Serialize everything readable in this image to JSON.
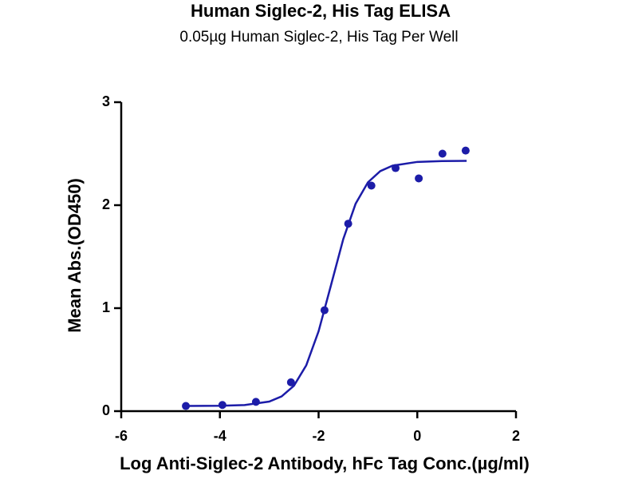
{
  "chart_data": {
    "type": "scatter",
    "title": "Human Siglec-2, His Tag ELISA",
    "subtitle": "0.05µg  Human Siglec-2, His Tag Per Well",
    "x_label": "Log Anti-Siglec-2 Antibody, hFc Tag Conc.(µg/ml)",
    "y_label": "Mean Abs.(OD450)",
    "xlim": [
      -6,
      2
    ],
    "ylim": [
      0,
      3
    ],
    "xticks": [
      -6,
      -4,
      -2,
      0,
      2
    ],
    "yticks": [
      0,
      1,
      2,
      3
    ],
    "series": [
      {
        "type": "scatter",
        "color": "#1c1ca8",
        "x": [
          -4.69,
          -3.95,
          -3.27,
          -2.56,
          -1.88,
          -1.4,
          -0.93,
          -0.44,
          0.03,
          0.51,
          0.98
        ],
        "values": [
          0.05,
          0.06,
          0.09,
          0.28,
          0.98,
          1.82,
          2.19,
          2.36,
          2.26,
          2.5,
          2.53
        ]
      },
      {
        "type": "line",
        "color": "#1c1ca8",
        "x": [
          -4.7,
          -4.0,
          -3.5,
          -3.0,
          -2.75,
          -2.5,
          -2.25,
          -2.0,
          -1.75,
          -1.5,
          -1.25,
          -1.0,
          -0.75,
          -0.5,
          0,
          0.5,
          1.0
        ],
        "values": [
          0.05,
          0.052,
          0.059,
          0.093,
          0.143,
          0.247,
          0.445,
          0.776,
          1.221,
          1.671,
          2.014,
          2.222,
          2.331,
          2.384,
          2.42,
          2.428,
          2.43
        ]
      }
    ]
  }
}
